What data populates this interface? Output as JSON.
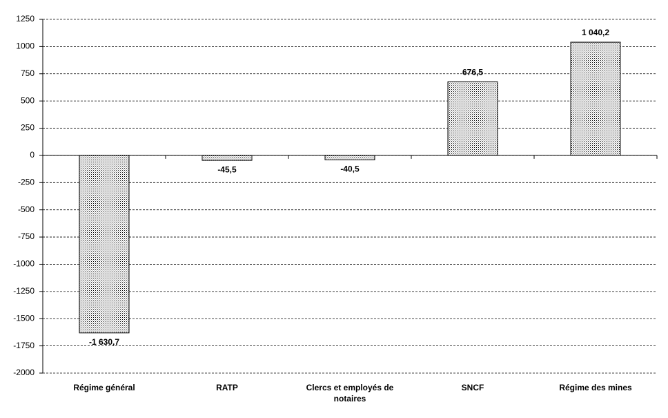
{
  "chart_data": {
    "type": "bar",
    "categories": [
      "Régime général",
      "RATP",
      "Clercs et employés de notaires",
      "SNCF",
      "Régime des mines"
    ],
    "values": [
      -1630.7,
      -45.5,
      -40.5,
      676.5,
      1040.2
    ],
    "value_labels": [
      "-1 630,7",
      "-45,5",
      "-40,5",
      "676,5",
      "1 040,2"
    ],
    "ylim": [
      -2000,
      1250
    ],
    "yticks": [
      -2000,
      -1750,
      -1500,
      -1250,
      -1000,
      -750,
      -500,
      -250,
      0,
      250,
      500,
      750,
      1000,
      1250
    ],
    "grid": true,
    "color": "#000000"
  }
}
